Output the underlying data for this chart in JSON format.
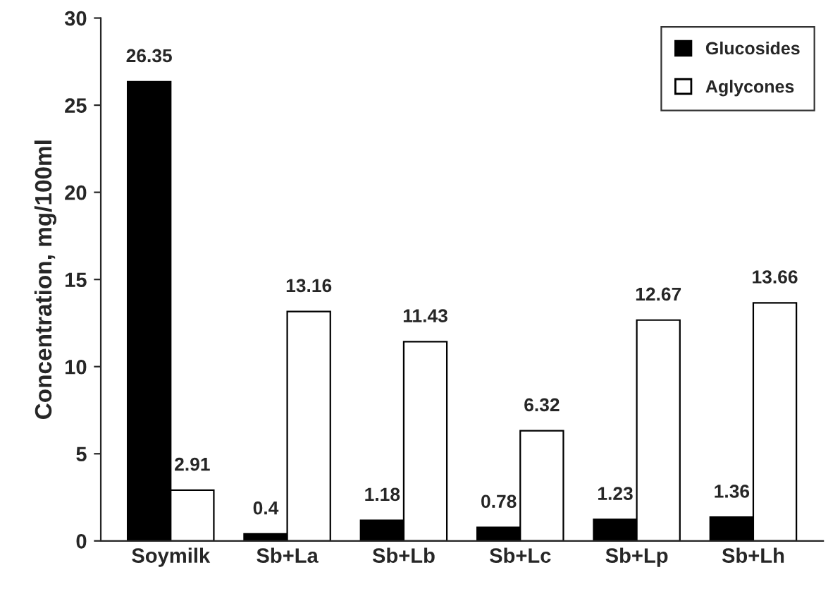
{
  "chart_data": {
    "type": "bar",
    "ylabel": "Concentration, mg/100ml",
    "categories": [
      "Soymilk",
      "Sb+La",
      "Sb+Lb",
      "Sb+Lc",
      "Sb+Lp",
      "Sb+Lh"
    ],
    "series": [
      {
        "name": "Glucosides",
        "color": "#000000",
        "values": [
          26.35,
          0.4,
          1.18,
          0.78,
          1.23,
          1.36
        ]
      },
      {
        "name": "Aglycones",
        "color": "#ffffff",
        "values": [
          2.91,
          13.16,
          11.43,
          6.32,
          12.67,
          13.66
        ]
      }
    ],
    "ylim": [
      0,
      30
    ],
    "yticks": [
      0,
      5,
      10,
      15,
      20,
      25,
      30
    ],
    "grid": false,
    "legend": "top right",
    "data_labels": true
  }
}
